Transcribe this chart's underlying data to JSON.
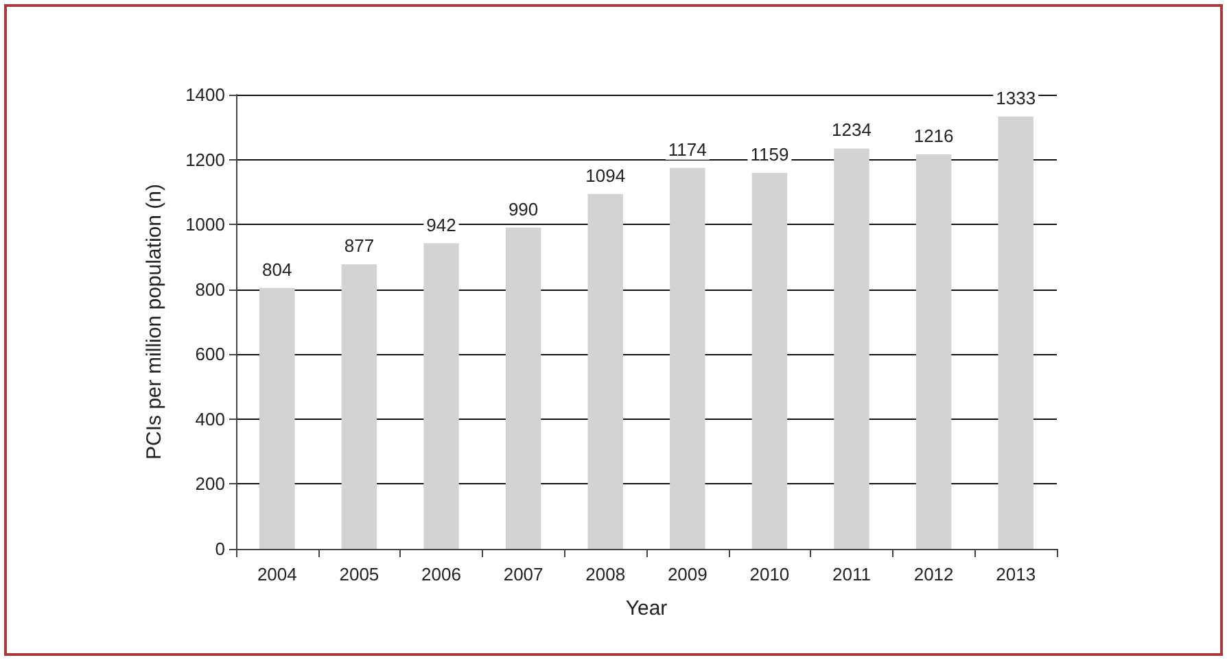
{
  "chart_data": {
    "type": "bar",
    "xlabel": "Year",
    "ylabel": "PCIs per million population (n)",
    "categories": [
      "2004",
      "2005",
      "2006",
      "2007",
      "2008",
      "2009",
      "2010",
      "2011",
      "2012",
      "2013"
    ],
    "values": [
      804,
      877,
      942,
      990,
      1094,
      1174,
      1159,
      1234,
      1216,
      1333
    ],
    "color": "#d3d3d3",
    "ylim": [
      0,
      1400
    ],
    "yticks": [
      0,
      200,
      400,
      600,
      800,
      1000,
      1200,
      1400
    ],
    "grid": "y",
    "data_labels": true
  }
}
